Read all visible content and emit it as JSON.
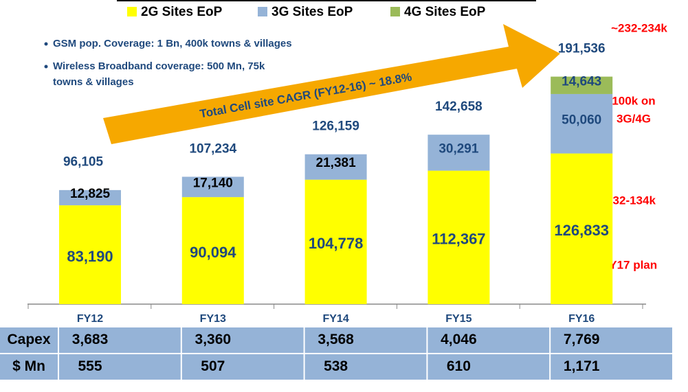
{
  "chart_data": {
    "type": "bar",
    "stacked": true,
    "categories": [
      "FY12",
      "FY13",
      "FY14",
      "FY15",
      "FY16"
    ],
    "series": [
      {
        "name": "2G Sites EoP",
        "color": "#ffff00",
        "values": [
          83190,
          90094,
          104778,
          112367,
          126833
        ],
        "value_labels": [
          "83,190",
          "90,094",
          "104,778",
          "112,367",
          "126,833"
        ]
      },
      {
        "name": "3G Sites EoP",
        "color": "#95b3d7",
        "values": [
          12825,
          17140,
          21381,
          30291,
          50060
        ],
        "value_labels": [
          "12,825",
          "17,140",
          "21,381",
          "30,291",
          "50,060"
        ]
      },
      {
        "name": "4G Sites EoP",
        "color": "#9bbb59",
        "values": [
          null,
          null,
          null,
          null,
          14643
        ],
        "value_labels": [
          null,
          null,
          null,
          null,
          "14,643"
        ]
      }
    ],
    "totals": [
      96105,
      107234,
      126159,
      142658,
      191536
    ],
    "total_labels": [
      "96,105",
      "107,234",
      "126,159",
      "142,658",
      "191,536"
    ],
    "ylim": [
      0,
      230000
    ],
    "bullets": [
      "GSM pop. Coverage: 1 Bn, 400k towns & villages",
      "Wireless Broadband coverage: 500 Mn, 75k",
      "towns & villages"
    ],
    "arrow_text": "Total Cell site CAGR (FY12-16) ~ 18.8%",
    "annotations": [
      "~232-234k",
      "100k on",
      "3G/4G",
      "132-134k",
      "FY17 plan"
    ],
    "table": {
      "rows": [
        {
          "label": "Capex",
          "values": [
            3683,
            3360,
            3568,
            4046,
            7769
          ],
          "value_labels": [
            "3,683",
            "3,360",
            "3,568",
            "4,046",
            "7,769"
          ]
        },
        {
          "label": "$ Mn",
          "values": [
            555,
            507,
            538,
            610,
            1171
          ],
          "value_labels": [
            "555",
            "507",
            "538",
            "610",
            "1,171"
          ]
        }
      ]
    }
  }
}
